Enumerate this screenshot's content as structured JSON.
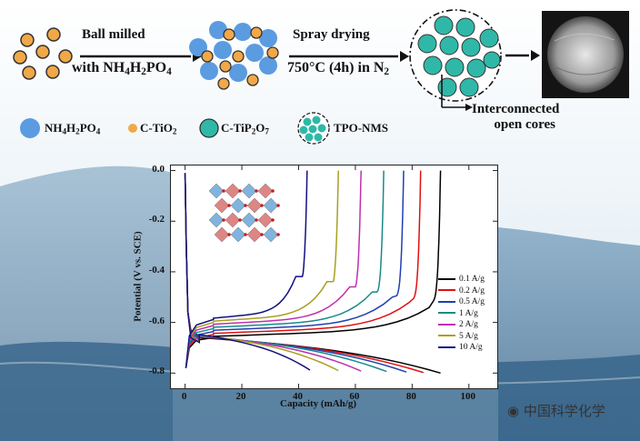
{
  "process": {
    "step1_line1": "Ball milled",
    "step1_line2_prefix": "with NH",
    "step1_line2_sub1": "4",
    "step1_line2_mid": "H",
    "step1_line2_sub2": "2",
    "step1_line2_mid2": "PO",
    "step1_line2_sub3": "4",
    "step2_line1": "Spray drying",
    "step2_line2_prefix": "750°C (4h) in N",
    "step2_line2_sub": "2",
    "callout_line1": "Interconnected",
    "callout_line2": "open cores"
  },
  "materials_legend": {
    "nh4h2po4_prefix": "NH",
    "nh4h2po4_s1": "4",
    "nh4h2po4_mid": "H",
    "nh4h2po4_s2": "2",
    "nh4h2po4_mid2": "PO",
    "nh4h2po4_s3": "4",
    "ctio2_prefix": "C-TiO",
    "ctio2_sub": "2",
    "ctip2o7_prefix": "C-TiP",
    "ctip2o7_s1": "2",
    "ctip2o7_mid": "O",
    "ctip2o7_s2": "7",
    "tpo": "TPO-NMS"
  },
  "colors": {
    "nh4h2po4": "#5b9be0",
    "ctio2": "#f0a848",
    "ctip2o7": "#2fb8a8",
    "wave_sky": "#d8e6ef",
    "wave_sea": "#3a6a90"
  },
  "chart_data": {
    "type": "line",
    "xlabel": "Capacity (mAh/g)",
    "ylabel": "Potential (V vs. SCE)",
    "xlim": [
      -5,
      110
    ],
    "ylim": [
      -0.86,
      0.02
    ],
    "xticks": [
      0,
      20,
      40,
      60,
      80,
      100
    ],
    "xtick_labels": [
      "0",
      "20",
      "40",
      "60",
      "80",
      "100"
    ],
    "yticks": [
      0.0,
      -0.2,
      -0.4,
      -0.6,
      -0.8
    ],
    "ytick_labels": [
      "0.0",
      "-0.2",
      "-0.4",
      "-0.6",
      "-0.8"
    ],
    "legend_position": "right",
    "series": [
      {
        "name": "0.1 A/g",
        "color": "#000000",
        "charge_end": 90,
        "discharge_end": 90
      },
      {
        "name": "0.2 A/g",
        "color": "#e01010",
        "charge_end": 83,
        "discharge_end": 84
      },
      {
        "name": "0.5 A/g",
        "color": "#2040b0",
        "charge_end": 77,
        "discharge_end": 78
      },
      {
        "name": "1 A/g",
        "color": "#1a8a88",
        "charge_end": 70,
        "discharge_end": 71
      },
      {
        "name": "2 A/g",
        "color": "#c030b0",
        "charge_end": 62,
        "discharge_end": 62
      },
      {
        "name": "5 A/g",
        "color": "#a8a020",
        "charge_end": 54,
        "discharge_end": 54
      },
      {
        "name": "10 A/g",
        "color": "#101080",
        "charge_end": 43,
        "discharge_end": 44
      }
    ]
  },
  "watermark": {
    "text": "中国科学化学"
  }
}
